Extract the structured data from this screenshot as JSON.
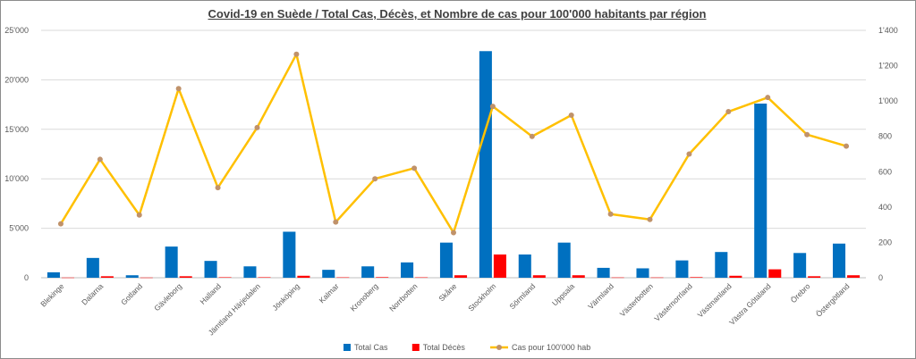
{
  "chart_data": {
    "type": "bar",
    "title": "Covid-19 en Suède / Total Cas, Décès, et Nombre de cas pour 100'000 habitants par région",
    "categories": [
      "Blekinge",
      "Dalarna",
      "Gotland",
      "Gävleborg",
      "Halland",
      "Jämtland Härjedalen",
      "Jönköping",
      "Kalmar",
      "Kronoberg",
      "Norrbotten",
      "Skåne",
      "Stockholm",
      "Sörmland",
      "Uppsala",
      "Värmland",
      "Västerbotten",
      "Västernorrland",
      "Västmanland",
      "Västra Götaland",
      "Örebro",
      "Östergötland"
    ],
    "series": [
      {
        "name": "Total Cas",
        "type": "bar",
        "axis": "left",
        "color": "#0070c0",
        "values": [
          550,
          2000,
          250,
          3150,
          1700,
          1150,
          4650,
          800,
          1150,
          1550,
          3550,
          22900,
          2350,
          3550,
          1000,
          950,
          1750,
          2600,
          17600,
          2500,
          3450
        ]
      },
      {
        "name": "Total Décès",
        "type": "bar",
        "axis": "left",
        "color": "#ff0000",
        "values": [
          20,
          150,
          20,
          150,
          50,
          50,
          200,
          40,
          60,
          40,
          250,
          2350,
          250,
          250,
          30,
          30,
          60,
          200,
          850,
          150,
          250
        ]
      },
      {
        "name": "Cas pour 100'000 hab",
        "type": "line",
        "axis": "right",
        "color": "#ffc000",
        "marker_color": "#c0926a",
        "values": [
          305,
          670,
          355,
          1070,
          510,
          850,
          1265,
          315,
          560,
          620,
          255,
          970,
          800,
          920,
          360,
          330,
          700,
          940,
          1020,
          810,
          745
        ]
      }
    ],
    "y_left": {
      "min": 0,
      "max": 25000,
      "step": 5000,
      "tick_labels": [
        "0",
        "5'000",
        "10'000",
        "15'000",
        "20'000",
        "25'000"
      ]
    },
    "y_right": {
      "min": 0,
      "max": 1400,
      "step": 200,
      "tick_labels": [
        "0",
        "200",
        "400",
        "600",
        "800",
        "1'000",
        "1'200",
        "1'400"
      ]
    },
    "grid": true,
    "legend_position": "bottom"
  }
}
